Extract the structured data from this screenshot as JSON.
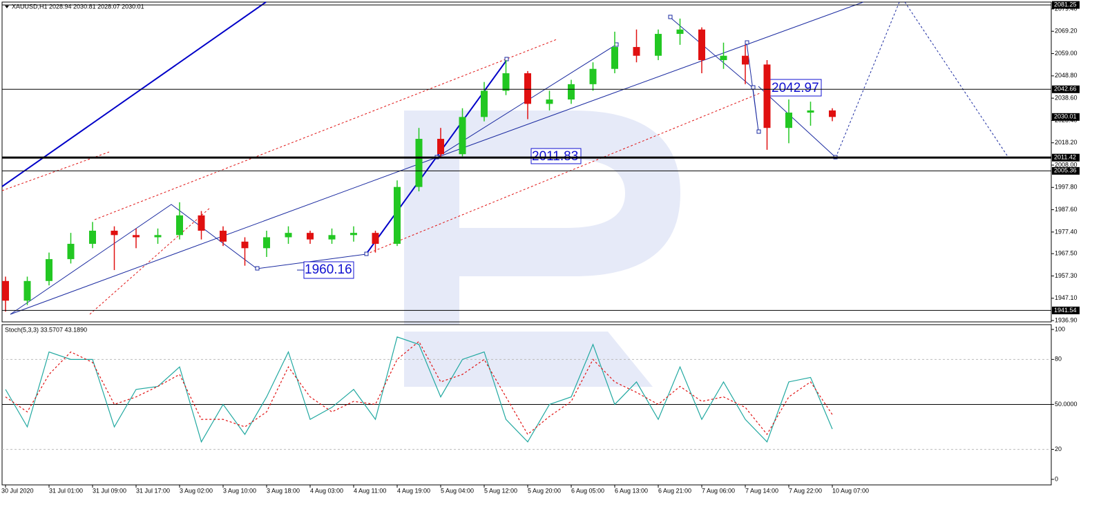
{
  "chart_data": [
    {
      "type": "candlestick",
      "title": "XAUUSD,H1  2028.94 2030.81 2028.07 2030.01",
      "categories": [
        "30 Jul 2020",
        null,
        "31 Jul 01:00",
        null,
        "31 Jul 09:00",
        null,
        "31 Jul 17:00",
        null,
        "3 Aug 02:00",
        null,
        "3 Aug 10:00",
        null,
        "3 Aug 18:00",
        null,
        "4 Aug 03:00",
        null,
        "4 Aug 11:00",
        null,
        "4 Aug 19:00",
        null,
        "5 Aug 04:00",
        null,
        "5 Aug 12:00",
        null,
        "5 Aug 20:00",
        null,
        "6 Aug 05:00",
        null,
        "6 Aug 13:00",
        null,
        "6 Aug 21:00",
        null,
        "7 Aug 06:00",
        null,
        "7 Aug 14:00",
        null,
        "7 Aug 22:00",
        null,
        "10 Aug 07:00"
      ],
      "open": [
        1955,
        1946,
        1955,
        1965,
        1972,
        1978,
        1976,
        1975,
        1976,
        1985,
        1978,
        1973,
        1970,
        1975,
        1977,
        1974,
        1976,
        1977,
        1972,
        1998,
        2020,
        2013,
        2030,
        2042,
        2050,
        2036,
        2038,
        2045,
        2052,
        2062,
        2058,
        2068,
        2070,
        2056,
        2058,
        2054,
        2025,
        2032,
        2033
      ],
      "high": [
        1957,
        1957,
        1968,
        1977,
        1982,
        1980,
        1979,
        1979,
        1991,
        1987,
        1980,
        1975,
        1978,
        1980,
        1978,
        1979,
        1980,
        1978,
        2001,
        2025,
        2025,
        2034,
        2046,
        2056,
        2051,
        2042,
        2047,
        2055,
        2069,
        2070,
        2070,
        2075,
        2071,
        2064,
        2063,
        2056,
        2038,
        2037,
        2034
      ],
      "low": [
        1941,
        1944,
        1953,
        1963,
        1970,
        1960,
        1970,
        1972,
        1974,
        1974,
        1971,
        1962,
        1966,
        1972,
        1972,
        1972,
        1973,
        1968,
        1971,
        1996,
        2011,
        2012,
        2028,
        2040,
        2029,
        2033,
        2036,
        2042,
        2050,
        2055,
        2056,
        2063,
        2050,
        2052,
        2045,
        2015,
        2018,
        2026,
        2028.07
      ],
      "close": [
        1946,
        1955,
        1965,
        1972,
        1978,
        1976,
        1975,
        1976,
        1985,
        1978,
        1973,
        1970,
        1975,
        1977,
        1974,
        1976,
        1977,
        1972,
        1998,
        2020,
        2013,
        2030,
        2042,
        2050,
        2036,
        2038,
        2045,
        2052,
        2062,
        2058,
        2068,
        2070,
        2056,
        2058,
        2054,
        2025,
        2032,
        2033,
        2030.01
      ],
      "up_color": "#22c722",
      "down_color": "#e01010",
      "ylim": [
        1936.3,
        2082.55
      ],
      "yticks": [
        {
          "value": 2079.4,
          "label": "2079.40"
        },
        {
          "value": 2069.2,
          "label": "2069.20"
        },
        {
          "value": 2059,
          "label": "2059.00"
        },
        {
          "value": 2048.8,
          "label": "2048.80"
        },
        {
          "value": 2038.6,
          "label": "2038.60"
        },
        {
          "value": 2028.4,
          "label": "2028.40"
        },
        {
          "value": 2018.2,
          "label": "2018.20"
        },
        {
          "value": 2008,
          "label": "2008.00"
        },
        {
          "value": 1997.8,
          "label": "1997.80"
        },
        {
          "value": 1987.6,
          "label": "1987.60"
        },
        {
          "value": 1977.4,
          "label": "1977.40"
        },
        {
          "value": 1967.5,
          "label": "1967.50"
        },
        {
          "value": 1957.3,
          "label": "1957.30"
        },
        {
          "value": 1947.1,
          "label": "1947.10"
        },
        {
          "value": 1936.9,
          "label": "1936.90"
        }
      ],
      "levels": [
        {
          "value": 2081.25,
          "width": 1
        },
        {
          "value": 2042.66,
          "width": 1
        },
        {
          "value": 2011.42,
          "width": 3
        },
        {
          "value": 2005.36,
          "width": 1
        },
        {
          "value": 1941.54,
          "width": 1
        }
      ],
      "bid": 2030.01,
      "annotations": [
        "2042.97",
        "2011.83",
        "1960.16"
      ]
    },
    {
      "type": "line",
      "title": "Stoch(5,3,3) 33.5707 43.1890",
      "series": [
        {
          "color": "#20a8a0",
          "dashed": false,
          "values": [
            60,
            35,
            85,
            80,
            80,
            35,
            60,
            62,
            75,
            25,
            50,
            30,
            55,
            85,
            40,
            48,
            60,
            40,
            95,
            90,
            55,
            80,
            85,
            40,
            25,
            50,
            55,
            90,
            50,
            65,
            40,
            75,
            40,
            65,
            40,
            25,
            65,
            68,
            33.5707
          ]
        },
        {
          "color": "#e01010",
          "dashed": true,
          "values": [
            55,
            45,
            70,
            85,
            78,
            50,
            55,
            62,
            70,
            40,
            40,
            35,
            45,
            75,
            55,
            45,
            52,
            50,
            80,
            92,
            65,
            70,
            80,
            55,
            30,
            42,
            52,
            80,
            65,
            58,
            50,
            62,
            52,
            55,
            48,
            30,
            55,
            65,
            43.189
          ]
        }
      ],
      "ylim": [
        -3.7,
        103.2
      ],
      "yticks": [
        100,
        80,
        {
          "value": 50,
          "label": "50.0000"
        },
        20,
        0
      ],
      "levels": [
        50
      ],
      "grid": true
    }
  ]
}
